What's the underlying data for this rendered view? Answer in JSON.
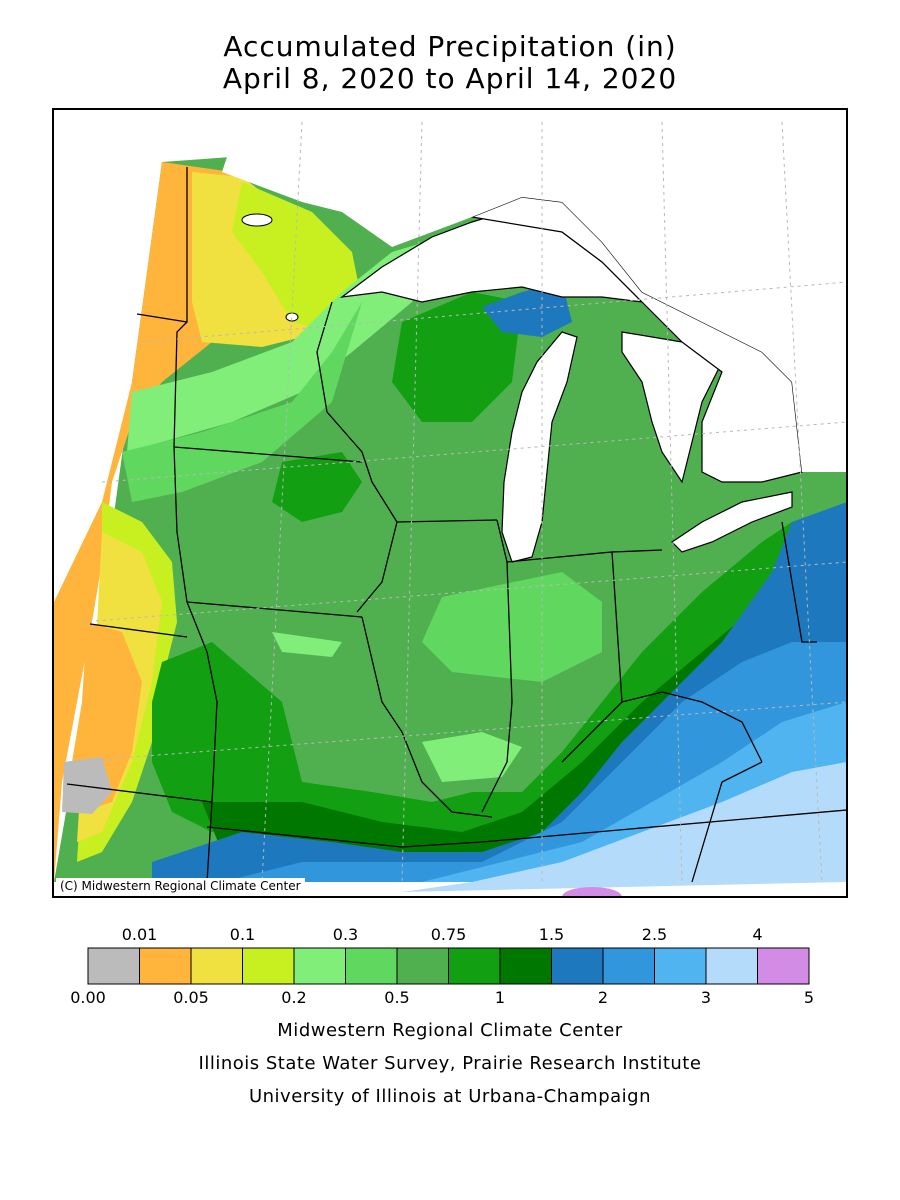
{
  "title": {
    "line1": "Accumulated Precipitation (in)",
    "line2": "April 8, 2020 to April 14, 2020"
  },
  "map": {
    "copyright": "(C) Midwestern Regional Climate Center",
    "colors": {
      "missing": "#bbbbbb",
      "c1": "#ffb43c",
      "c2": "#f0e040",
      "c3": "#c8f020",
      "c4": "#80ee78",
      "c5": "#60d860",
      "c6": "#50b050",
      "c7": "#12a012",
      "c8": "#007800",
      "c9": "#1e78be",
      "c10": "#3296dc",
      "c11": "#50b4f0",
      "c12": "#b4dcfa",
      "c13": "#d28ce6"
    }
  },
  "legend": {
    "top_labels": [
      "0.01",
      "0.1",
      "0.3",
      "0.75",
      "1.5",
      "2.5",
      "4"
    ],
    "bottom_labels": [
      "0.00",
      "0.05",
      "0.2",
      "0.5",
      "1",
      "2",
      "3",
      "5"
    ],
    "bins": [
      {
        "color": "#bbbbbb"
      },
      {
        "color": "#ffb43c"
      },
      {
        "color": "#f0e040"
      },
      {
        "color": "#c8f020"
      },
      {
        "color": "#80ee78"
      },
      {
        "color": "#60d860"
      },
      {
        "color": "#50b050"
      },
      {
        "color": "#12a012"
      },
      {
        "color": "#007800"
      },
      {
        "color": "#1e78be"
      },
      {
        "color": "#3296dc"
      },
      {
        "color": "#50b4f0"
      },
      {
        "color": "#b4dcfa"
      },
      {
        "color": "#d28ce6"
      }
    ]
  },
  "credits": {
    "line1": "Midwestern Regional Climate Center",
    "line2": "Illinois State Water Survey, Prairie Research Institute",
    "line3": "University of Illinois at Urbana-Champaign"
  }
}
